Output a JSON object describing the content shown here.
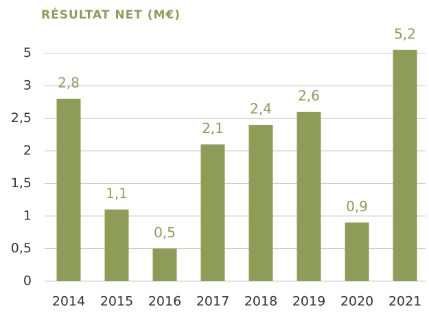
{
  "chart_data": {
    "type": "bar",
    "title": "RÉSULTAT NET (M€)",
    "categories": [
      "2014",
      "2015",
      "2016",
      "2017",
      "2018",
      "2019",
      "2020",
      "2021"
    ],
    "values": [
      2.8,
      1.1,
      0.5,
      2.1,
      2.4,
      2.6,
      0.9,
      5.2
    ],
    "value_labels": [
      "2,8",
      "1,1",
      "0,5",
      "2,1",
      "2,4",
      "2,6",
      "0,9",
      "5,2"
    ],
    "color": "#8d9d57",
    "ylim": [
      0,
      5.5
    ],
    "yticks": [
      0,
      {
        "value": 0.5,
        "label": "0,5"
      },
      1,
      {
        "value": 1.5,
        "label": "1,5"
      },
      2,
      {
        "value": 2.5,
        "label": "2,5"
      },
      3,
      5
    ],
    "grid": true
  }
}
